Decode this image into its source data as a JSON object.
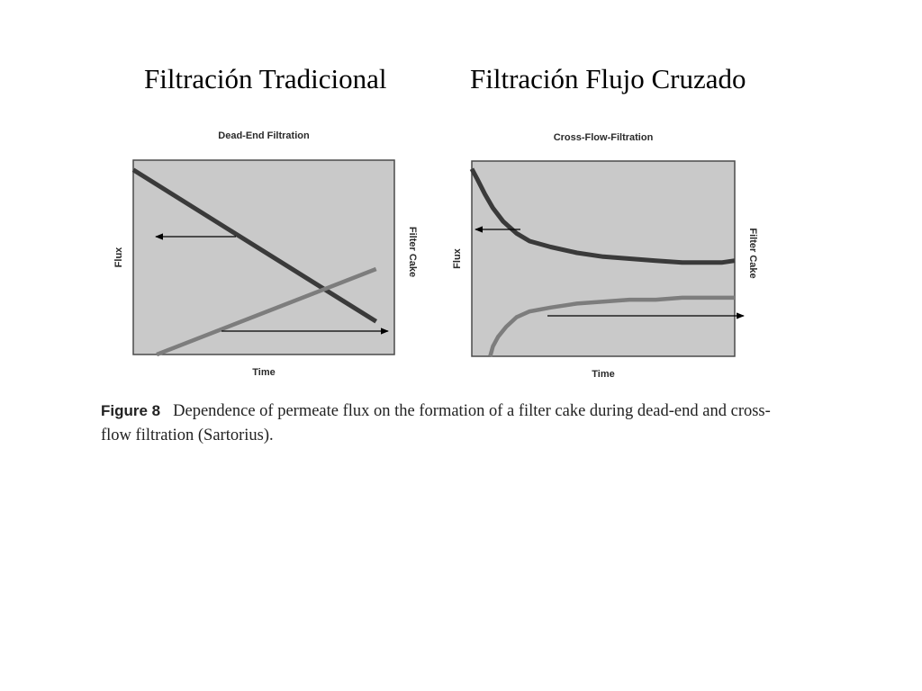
{
  "slide": {
    "title_left": "Filtración Tradicional",
    "title_right": "Filtración Flujo Cruzado"
  },
  "caption": {
    "label": "Figure 8",
    "text": "Dependence of permeate flux on the formation of a filter cake during dead-end and cross-flow filtration (Sartorius)."
  },
  "colors": {
    "plot_bg": "#c9c9c9",
    "frame": "#4a4a4a",
    "flux_line": "#3a3a3a",
    "cake_line": "#7d7d7d",
    "arrow": "#000000"
  },
  "chart_data": [
    {
      "type": "line",
      "title": "Dead-End Filtration",
      "xlabel": "Time",
      "ylabel": "Flux",
      "ylabel_right": "Filter Cake",
      "xlim": [
        0,
        1
      ],
      "ylim": [
        0,
        1
      ],
      "grid": false,
      "series": [
        {
          "name": "Flux",
          "axis": "left",
          "x": [
            0,
            0.93
          ],
          "y": [
            0.95,
            0.17
          ]
        },
        {
          "name": "Filter Cake",
          "axis": "right",
          "x": [
            0.09,
            0.93
          ],
          "y": [
            0.0,
            0.44
          ]
        }
      ]
    },
    {
      "type": "line",
      "title": "Cross-Flow-Filtration",
      "xlabel": "Time",
      "ylabel": "Flux",
      "ylabel_right": "Filter Cake",
      "xlim": [
        0,
        1
      ],
      "ylim": [
        0,
        1
      ],
      "grid": false,
      "series": [
        {
          "name": "Flux",
          "axis": "left",
          "x": [
            0,
            0.02,
            0.05,
            0.08,
            0.12,
            0.17,
            0.22,
            0.3,
            0.4,
            0.5,
            0.6,
            0.7,
            0.8,
            0.87,
            0.95,
            1.0
          ],
          "y": [
            0.96,
            0.91,
            0.83,
            0.76,
            0.69,
            0.63,
            0.59,
            0.56,
            0.53,
            0.51,
            0.5,
            0.49,
            0.48,
            0.48,
            0.48,
            0.49
          ]
        },
        {
          "name": "Filter Cake",
          "axis": "right",
          "x": [
            0.07,
            0.08,
            0.1,
            0.13,
            0.17,
            0.22,
            0.3,
            0.4,
            0.5,
            0.6,
            0.7,
            0.8,
            0.9,
            1.0
          ],
          "y": [
            0.0,
            0.05,
            0.1,
            0.15,
            0.2,
            0.23,
            0.25,
            0.27,
            0.28,
            0.29,
            0.29,
            0.3,
            0.3,
            0.3
          ]
        }
      ]
    }
  ]
}
